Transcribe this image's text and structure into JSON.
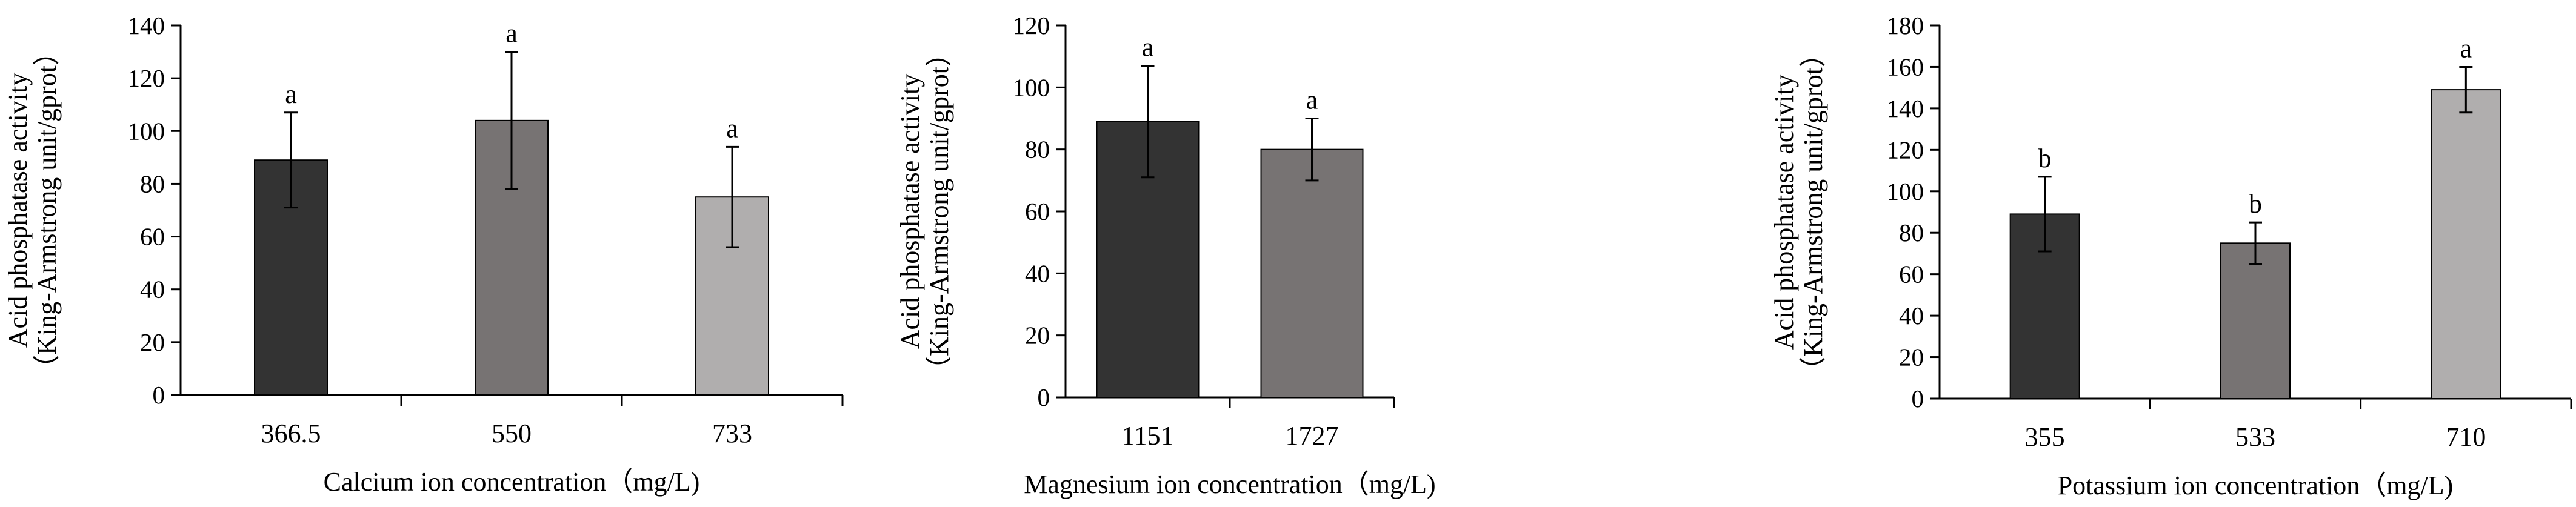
{
  "chart_data": [
    {
      "type": "bar",
      "categories": [
        "366.5",
        "550",
        "733"
      ],
      "values": [
        89,
        104,
        75
      ],
      "errors": [
        18,
        26,
        19
      ],
      "significance": [
        "a",
        "a",
        "a"
      ],
      "bar_colors": [
        "#333333",
        "#777373",
        "#b0aeae"
      ],
      "xlabel": "Calcium ion concentration（mg/L)",
      "ylabel": [
        "Acid phosphatase activity",
        "（King-Armstrong unit/gprot）"
      ],
      "ylim": [
        0,
        140
      ],
      "yticks": [
        0,
        20,
        40,
        60,
        80,
        100,
        120,
        140
      ],
      "grid": false
    },
    {
      "type": "bar",
      "categories": [
        "1151",
        "1727"
      ],
      "values": [
        89,
        80
      ],
      "errors": [
        18,
        10
      ],
      "significance": [
        "a",
        "a"
      ],
      "bar_colors": [
        "#333333",
        "#777373"
      ],
      "xlabel": "Magnesium ion concentration（mg/L)",
      "ylabel": [
        "Acid phosphatase activity",
        "（King-Armstrong unit/gprot）"
      ],
      "ylim": [
        0,
        120
      ],
      "yticks": [
        0,
        20,
        40,
        60,
        80,
        100,
        120
      ],
      "grid": false
    },
    {
      "type": "bar",
      "categories": [
        "355",
        "533",
        "710"
      ],
      "values": [
        89,
        75,
        149
      ],
      "errors": [
        18,
        10,
        11
      ],
      "significance": [
        "b",
        "b",
        "a"
      ],
      "bar_colors": [
        "#333333",
        "#777373",
        "#b0aeae"
      ],
      "xlabel": "Potassium ion concentration（mg/L)",
      "ylabel": [
        "Acid phosphatase activity",
        "（King-Armstrong unit/gprot）"
      ],
      "ylim": [
        0,
        180
      ],
      "yticks": [
        0,
        20,
        40,
        60,
        80,
        100,
        120,
        140,
        160,
        180
      ],
      "grid": false
    }
  ]
}
